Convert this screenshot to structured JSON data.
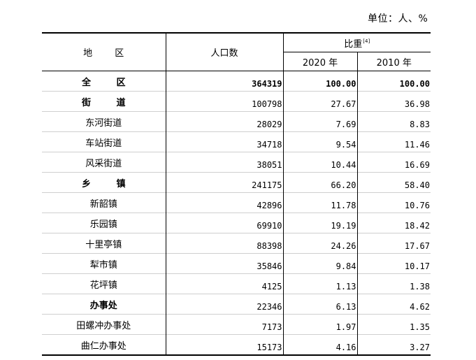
{
  "unit_label": "单位：人、%",
  "header": {
    "region": "地 区",
    "population": "人口数",
    "share": "比重",
    "share_note": "[4]",
    "year_2020": "2020 年",
    "year_2010": "2010 年"
  },
  "rows": [
    {
      "name": "全 区",
      "population": "364319",
      "y2020": "100.00",
      "y2010": "100.00"
    },
    {
      "name": "街 道",
      "population": "100798",
      "y2020": "27.67",
      "y2010": "36.98"
    },
    {
      "name": "东河街道",
      "population": "28029",
      "y2020": "7.69",
      "y2010": "8.83"
    },
    {
      "name": "车站街道",
      "population": "34718",
      "y2020": "9.54",
      "y2010": "11.46"
    },
    {
      "name": "风采街道",
      "population": "38051",
      "y2020": "10.44",
      "y2010": "16.69"
    },
    {
      "name": "乡 镇",
      "population": "241175",
      "y2020": "66.20",
      "y2010": "58.40"
    },
    {
      "name": "新韶镇",
      "population": "42896",
      "y2020": "11.78",
      "y2010": "10.76"
    },
    {
      "name": "乐园镇",
      "population": "69910",
      "y2020": "19.19",
      "y2010": "18.42"
    },
    {
      "name": "十里亭镇",
      "population": "88398",
      "y2020": "24.26",
      "y2010": "17.67"
    },
    {
      "name": "犁市镇",
      "population": "35846",
      "y2020": "9.84",
      "y2010": "10.17"
    },
    {
      "name": "花坪镇",
      "population": "4125",
      "y2020": "1.13",
      "y2010": "1.38"
    },
    {
      "name": "办事处",
      "population": "22346",
      "y2020": "6.13",
      "y2010": "4.62"
    },
    {
      "name": "田螺冲办事处",
      "population": "7173",
      "y2020": "1.97",
      "y2010": "1.35"
    },
    {
      "name": "曲仁办事处",
      "population": "15173",
      "y2020": "4.16",
      "y2010": "3.27"
    }
  ]
}
